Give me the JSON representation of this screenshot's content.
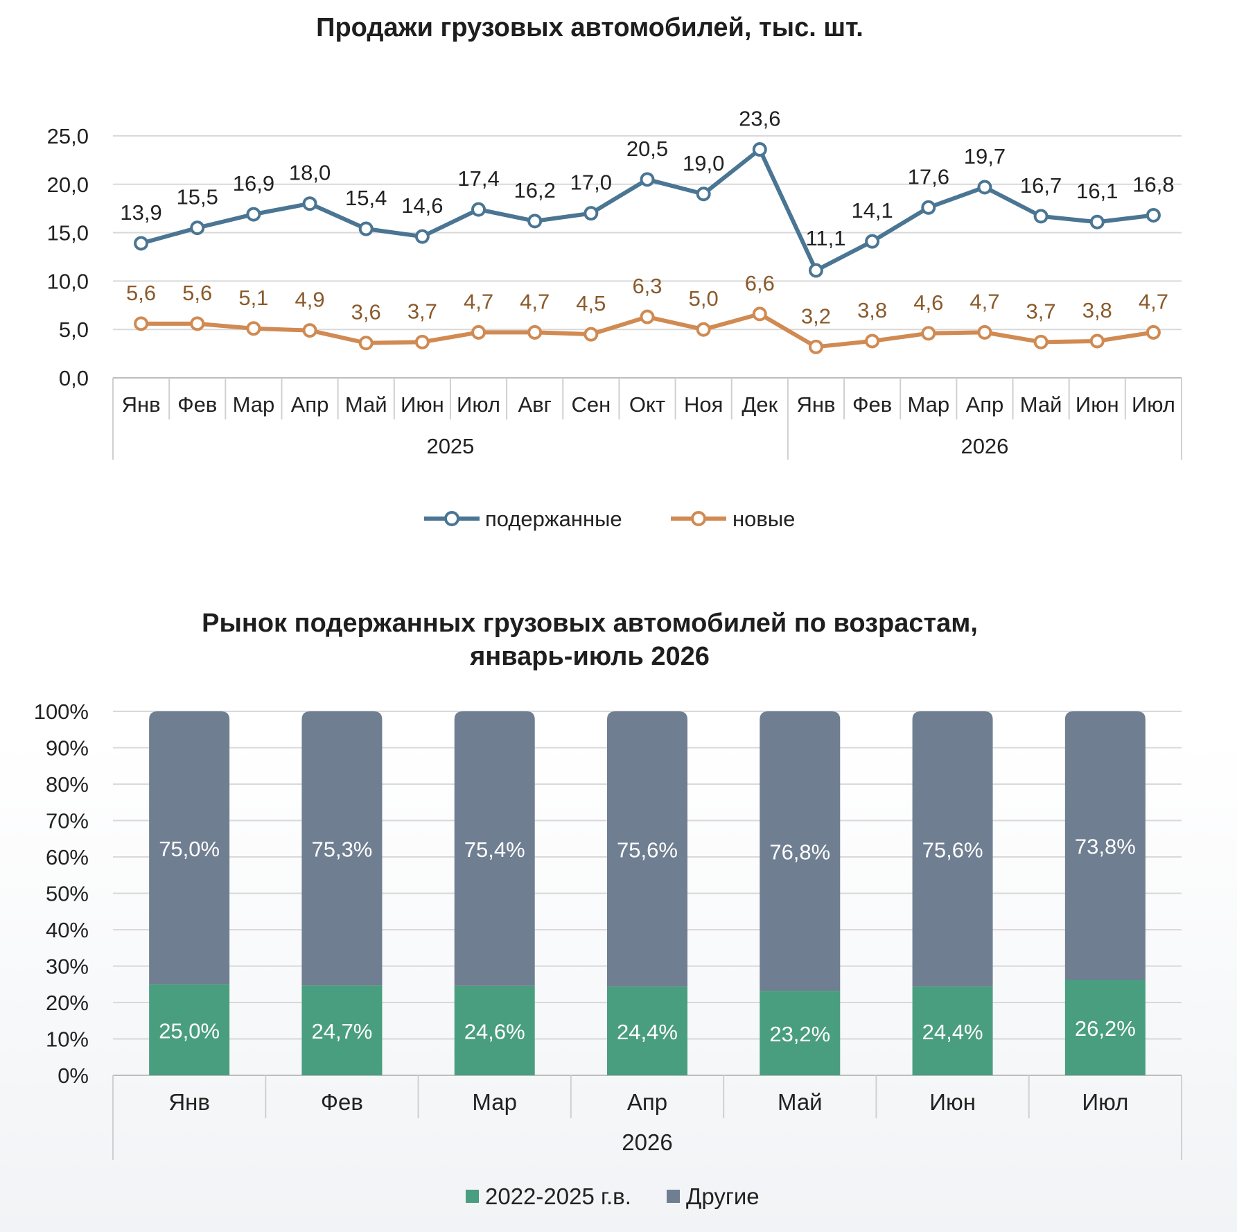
{
  "chart_data": [
    {
      "type": "line",
      "title": "Продажи грузовых автомобилей, тыс. шт.",
      "ylim": [
        0,
        25
      ],
      "yticks": [
        "0,0",
        "5,0",
        "10,0",
        "15,0",
        "20,0",
        "25,0"
      ],
      "categories": [
        "Янв",
        "Фев",
        "Мар",
        "Апр",
        "Май",
        "Июн",
        "Июл",
        "Авг",
        "Сен",
        "Окт",
        "Ноя",
        "Дек",
        "Янв",
        "Фев",
        "Мар",
        "Апр",
        "Май",
        "Июн",
        "Июл"
      ],
      "groups": [
        {
          "label": "2025",
          "count": 12
        },
        {
          "label": "2026",
          "count": 7
        }
      ],
      "grid": true,
      "legend": "bottom",
      "series": [
        {
          "name": "подержанные",
          "color": "#4a7593",
          "values": [
            13.9,
            15.5,
            16.9,
            18.0,
            15.4,
            14.6,
            17.4,
            16.2,
            17.0,
            20.5,
            19.0,
            23.6,
            11.1,
            14.1,
            17.6,
            19.7,
            16.7,
            16.1,
            16.8
          ],
          "labels": [
            "13,9",
            "15,5",
            "16,9",
            "18,0",
            "15,4",
            "14,6",
            "17,4",
            "16,2",
            "17,0",
            "20,5",
            "19,0",
            "23,6",
            "11,1",
            "14,1",
            "17,6",
            "19,7",
            "16,7",
            "16,1",
            "16,8"
          ]
        },
        {
          "name": "новые",
          "color": "#d08a52",
          "label_color": "#8a5a2b",
          "values": [
            5.6,
            5.6,
            5.1,
            4.9,
            3.6,
            3.7,
            4.7,
            4.7,
            4.5,
            6.3,
            5.0,
            6.6,
            3.2,
            3.8,
            4.6,
            4.7,
            3.7,
            3.8,
            4.7
          ],
          "labels": [
            "5,6",
            "5,6",
            "5,1",
            "4,9",
            "3,6",
            "3,7",
            "4,7",
            "4,7",
            "4,5",
            "6,3",
            "5,0",
            "6,6",
            "3,2",
            "3,8",
            "4,6",
            "4,7",
            "3,7",
            "3,8",
            "4,7"
          ]
        }
      ]
    },
    {
      "type": "bar",
      "stacked": true,
      "title": [
        "Рынок подержанных грузовых автомобилей по возрастам,",
        "январь-июль 2026"
      ],
      "ylim": [
        0,
        100
      ],
      "yticks": [
        "0%",
        "10%",
        "20%",
        "30%",
        "40%",
        "50%",
        "60%",
        "70%",
        "80%",
        "90%",
        "100%"
      ],
      "categories": [
        "Янв",
        "Фев",
        "Мар",
        "Апр",
        "Май",
        "Июн",
        "Июл"
      ],
      "groups": [
        {
          "label": "2026",
          "count": 7
        }
      ],
      "grid": true,
      "legend": "bottom",
      "series": [
        {
          "name": "2022-2025 г.в.",
          "color": "#4a9e80",
          "values": [
            25.0,
            24.7,
            24.6,
            24.4,
            23.2,
            24.4,
            26.2
          ],
          "labels": [
            "25,0%",
            "24,7%",
            "24,6%",
            "24,4%",
            "23,2%",
            "24,4%",
            "26,2%"
          ]
        },
        {
          "name": "Другие",
          "color": "#6f7e91",
          "values": [
            75.0,
            75.3,
            75.4,
            75.6,
            76.8,
            75.6,
            73.8
          ],
          "labels": [
            "75,0%",
            "75,3%",
            "75,4%",
            "75,6%",
            "76,8%",
            "75,6%",
            "73,8%"
          ]
        }
      ]
    }
  ]
}
